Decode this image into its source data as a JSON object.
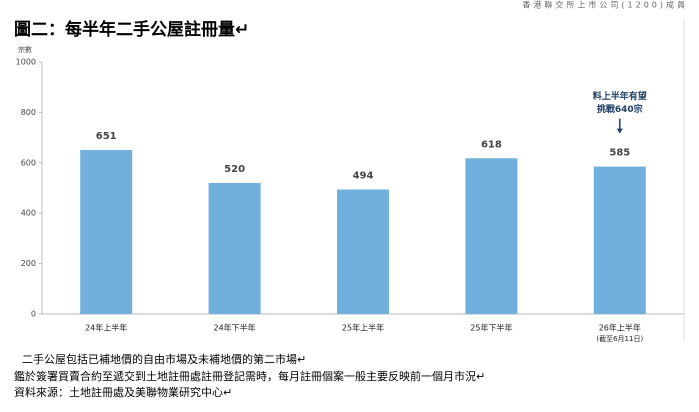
{
  "header": "香港聯交所上市公司(1200)成員",
  "chart_data": {
    "type": "bar",
    "title": "圖二：每半年二手公屋註冊量↵",
    "y_label": "宗數",
    "categories": [
      "24年上半年",
      "24年下半年",
      "25年上半年",
      "25年下半年",
      "26年上半年"
    ],
    "category_note": "(截至6月11日)",
    "values": [
      651,
      520,
      494,
      618,
      585
    ],
    "color": "#6fb0dd",
    "ylim": [
      0,
      1000
    ],
    "yticks": [
      0,
      200,
      400,
      600,
      800,
      {
        "value": 1000,
        "label": "1000"
      }
    ],
    "annotation": [
      "料上半年有望",
      "挑戰640宗"
    ]
  },
  "footnotes": [
    "二手公屋包括已補地價的自由市場及未補地價的第二市場↵",
    "鑑於簽署買賣合約至遞交到土地註冊處註冊登記需時，每月註冊個案一般主要反映前一個月市況↵",
    "資料來源：土地註冊處及美聯物業研究中心↵"
  ]
}
